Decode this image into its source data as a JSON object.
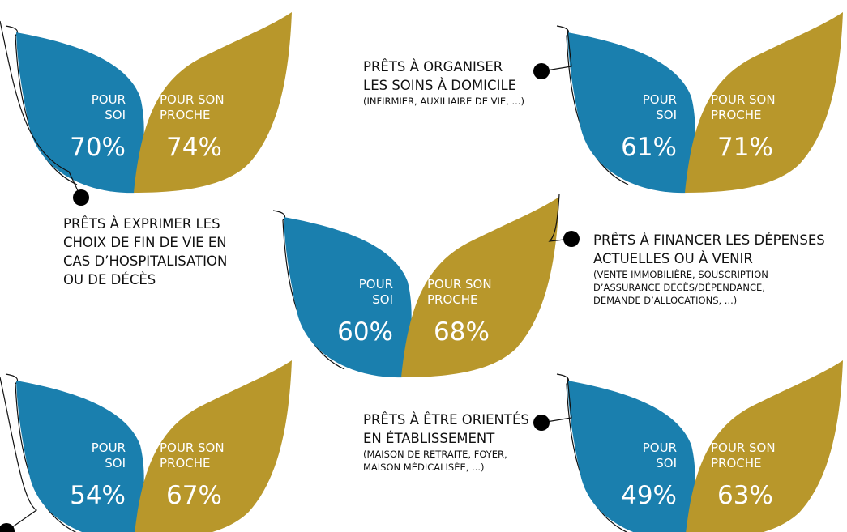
{
  "panels": [
    {
      "self_label": [
        "POUR",
        "SOI"
      ],
      "self_value": "70%",
      "other_label": [
        "POUR SON",
        "PROCHE"
      ],
      "other_value": "74%",
      "title": [
        "PRÊTS À EXPRIMER LES",
        "CHOIX DE FIN DE VIE EN",
        "CAS D’HOSPITALISATION",
        "OU DE DÉCÈS"
      ],
      "note": []
    },
    {
      "self_label": [
        "POUR",
        "SOI"
      ],
      "self_value": "61%",
      "other_label": [
        "POUR SON",
        "PROCHE"
      ],
      "other_value": "71%",
      "title": [
        "PRÊTS À ORGANISER",
        "LES SOINS À DOMICILE"
      ],
      "note": [
        "(INFIRMIER, AUXILIAIRE DE VIE, ...)"
      ]
    },
    {
      "self_label": [
        "POUR",
        "SOI"
      ],
      "self_value": "60%",
      "other_label": [
        "POUR SON",
        "PROCHE"
      ],
      "other_value": "68%",
      "title": [
        "PRÊTS À FINANCER LES DÉPENSES",
        "ACTUELLES OU À VENIR"
      ],
      "note": [
        "(VENTE IMMOBILIÈRE, SOUSCRIPTION",
        "D’ASSURANCE DÉCÈS/DÉPENDANCE,",
        "DEMANDE D’ALLOCATIONS, ...)"
      ]
    },
    {
      "self_label": [
        "POUR",
        "SOI"
      ],
      "self_value": "54%",
      "other_label": [
        "POUR SON",
        "PROCHE"
      ],
      "other_value": "67%",
      "title": [],
      "note": []
    },
    {
      "self_label": [
        "POUR",
        "SOI"
      ],
      "self_value": "49%",
      "other_label": [
        "POUR SON",
        "PROCHE"
      ],
      "other_value": "63%",
      "title": [
        "PRÊTS À ÊTRE ORIENTÉS",
        "EN ÉTABLISSEMENT"
      ],
      "note": [
        "(MAISON DE RETRAITE, FOYER,",
        "MAISON MÉDICALISÉE, ...)"
      ]
    }
  ]
}
